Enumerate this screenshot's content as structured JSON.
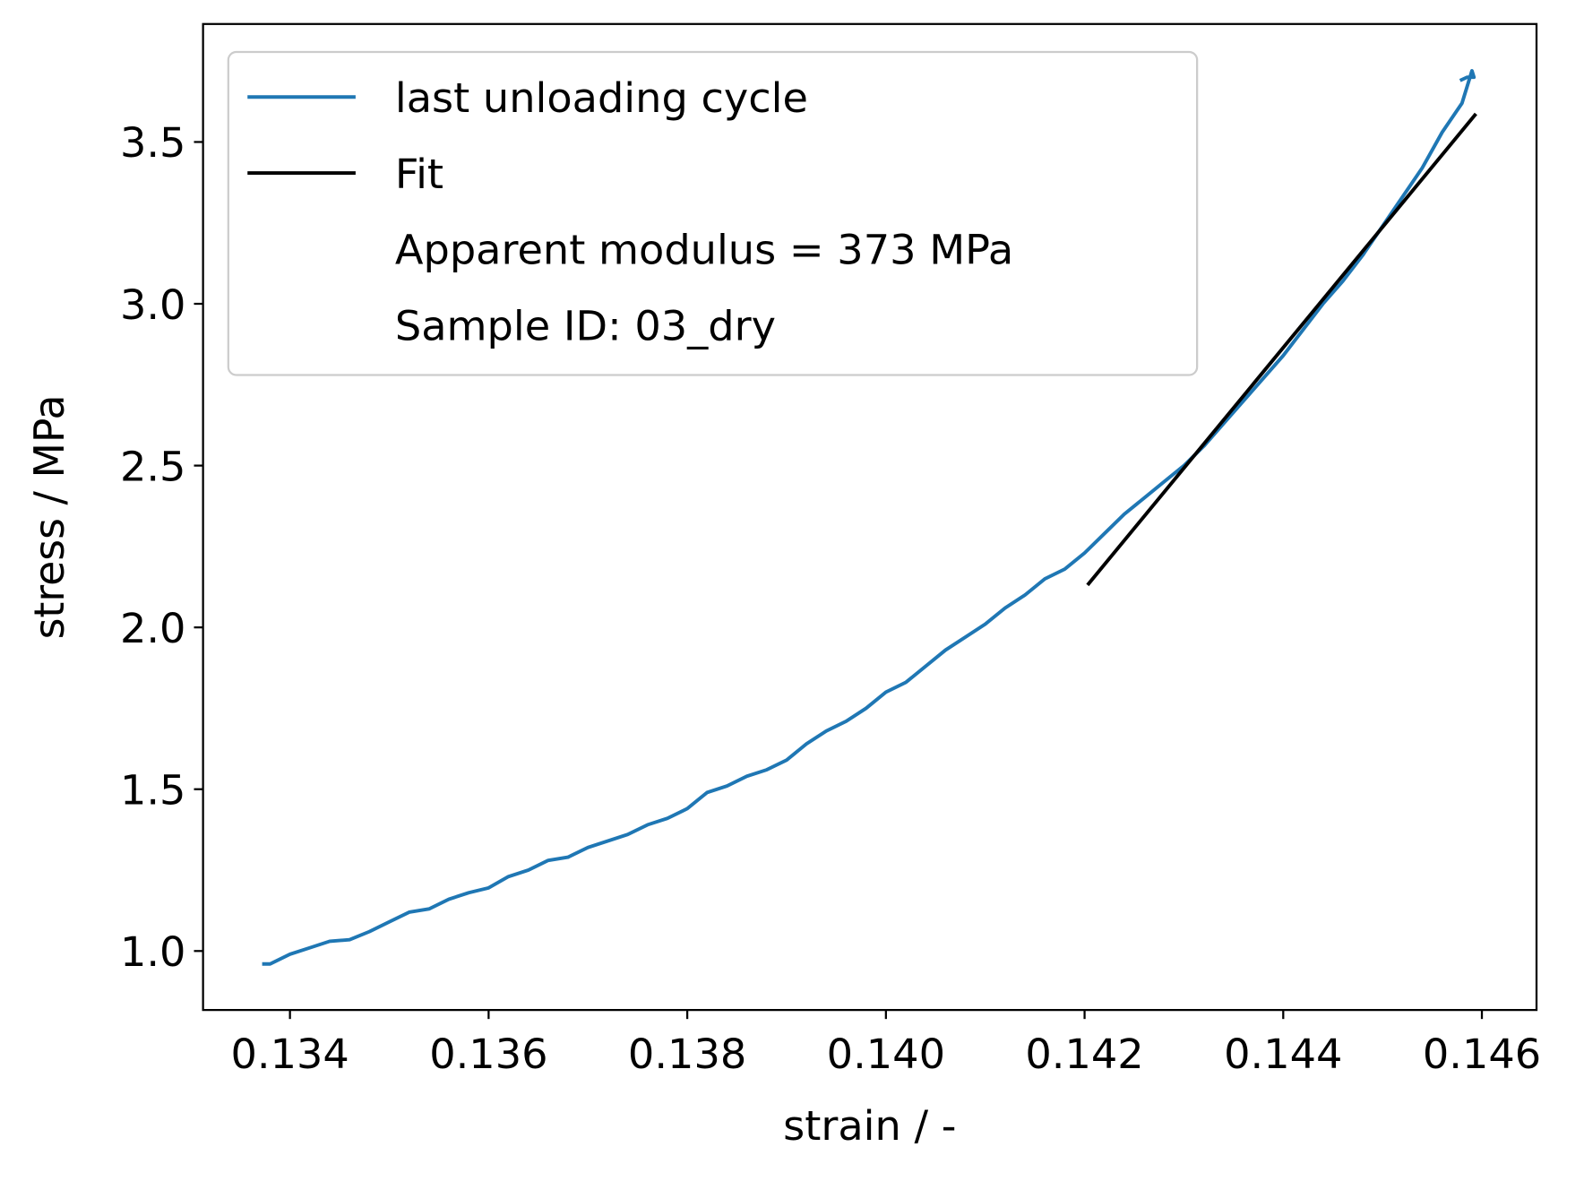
{
  "chart_data": {
    "type": "line",
    "xlabel": "strain / -",
    "ylabel": "stress / MPa",
    "xlim": [
      0.133125,
      0.14655
    ],
    "ylim": [
      0.8177,
      3.8646
    ],
    "xticks": [
      {
        "value": 0.134,
        "label": "0.134"
      },
      {
        "value": 0.136,
        "label": "0.136"
      },
      {
        "value": 0.138,
        "label": "0.138"
      },
      {
        "value": 0.14,
        "label": "0.140"
      },
      {
        "value": 0.142,
        "label": "0.142"
      },
      {
        "value": 0.144,
        "label": "0.144"
      },
      {
        "value": 0.146,
        "label": "0.146"
      }
    ],
    "yticks": [
      {
        "value": 1.0,
        "label": "1.0"
      },
      {
        "value": 1.5,
        "label": "1.5"
      },
      {
        "value": 2.0,
        "label": "2.0"
      },
      {
        "value": 2.5,
        "label": "2.5"
      },
      {
        "value": 3.0,
        "label": "3.0"
      },
      {
        "value": 3.5,
        "label": "3.5"
      }
    ],
    "legend_position": "upper left",
    "legend_notes": [
      "Apparent modulus = 373 MPa",
      "Sample ID: 03_dry"
    ],
    "series": [
      {
        "name": "last unloading cycle",
        "color": "#1f77b4",
        "x": [
          0.13372,
          0.1338,
          0.134,
          0.1342,
          0.1344,
          0.1346,
          0.1348,
          0.135,
          0.1352,
          0.1354,
          0.1356,
          0.1358,
          0.136,
          0.1362,
          0.1364,
          0.1366,
          0.1368,
          0.137,
          0.1372,
          0.1374,
          0.1376,
          0.1378,
          0.138,
          0.1382,
          0.1384,
          0.1386,
          0.1388,
          0.139,
          0.1392,
          0.1394,
          0.1396,
          0.1398,
          0.14,
          0.1402,
          0.1404,
          0.1406,
          0.1408,
          0.141,
          0.1412,
          0.1414,
          0.1416,
          0.1418,
          0.142,
          0.1422,
          0.1424,
          0.1426,
          0.1428,
          0.143,
          0.1432,
          0.1434,
          0.1436,
          0.1438,
          0.144,
          0.1442,
          0.1444,
          0.1446,
          0.1448,
          0.145,
          0.1452,
          0.1454,
          0.1456,
          0.1458,
          0.14585,
          0.1459,
          0.14592,
          0.14585,
          0.14578
        ],
        "values": [
          0.96,
          0.96,
          0.99,
          1.01,
          1.03,
          1.035,
          1.06,
          1.09,
          1.12,
          1.13,
          1.16,
          1.18,
          1.195,
          1.23,
          1.25,
          1.28,
          1.29,
          1.32,
          1.34,
          1.36,
          1.39,
          1.41,
          1.44,
          1.49,
          1.51,
          1.54,
          1.56,
          1.59,
          1.64,
          1.68,
          1.71,
          1.75,
          1.8,
          1.83,
          1.88,
          1.93,
          1.97,
          2.01,
          2.06,
          2.1,
          2.15,
          2.18,
          2.23,
          2.29,
          2.35,
          2.4,
          2.45,
          2.5,
          2.56,
          2.63,
          2.7,
          2.77,
          2.84,
          2.92,
          3.0,
          3.07,
          3.15,
          3.24,
          3.33,
          3.42,
          3.53,
          3.62,
          3.67,
          3.72,
          3.7,
          3.7,
          3.69
        ]
      },
      {
        "name": "Fit",
        "color": "#000000",
        "x": [
          0.14203,
          0.14594
        ],
        "values": [
          2.131,
          3.587
        ]
      }
    ]
  }
}
